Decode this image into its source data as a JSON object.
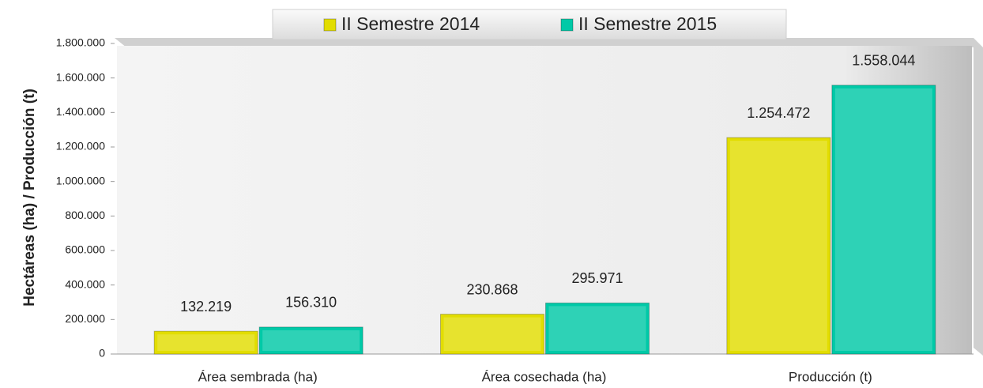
{
  "chart_data": {
    "type": "bar",
    "y_label": "Hectáreas (ha) / Producción (t)",
    "categories": [
      "Área sembrada (ha)",
      "Área cosechada (ha)",
      "Producción (t)"
    ],
    "series": [
      {
        "name": "II Semestre 2014",
        "color": "#e2dd00",
        "values": [
          132219,
          230868,
          1254472
        ],
        "value_labels": [
          "132.219",
          "230.868",
          "1.254.472"
        ]
      },
      {
        "name": "II Semestre 2015",
        "color": "#00c9a7",
        "values": [
          156310,
          295971,
          1558044
        ],
        "value_labels": [
          "156.310",
          "295.971",
          "1.558.044"
        ]
      }
    ],
    "ylim": [
      0,
      1800000
    ],
    "yticks": [
      0,
      {
        "value": 200000,
        "label": "200.000"
      },
      {
        "value": 400000,
        "label": "400.000"
      },
      {
        "value": 600000,
        "label": "600.000"
      },
      {
        "value": 800000,
        "label": "800.000"
      },
      {
        "value": 1000000,
        "label": "1.000.000"
      },
      {
        "value": 1200000,
        "label": "1.200.000"
      },
      {
        "value": 1400000,
        "label": "1.400.000"
      },
      {
        "value": 1600000,
        "label": "1.600.000"
      },
      {
        "value": 1800000,
        "label": "1.800.000"
      }
    ],
    "legend": "top"
  }
}
